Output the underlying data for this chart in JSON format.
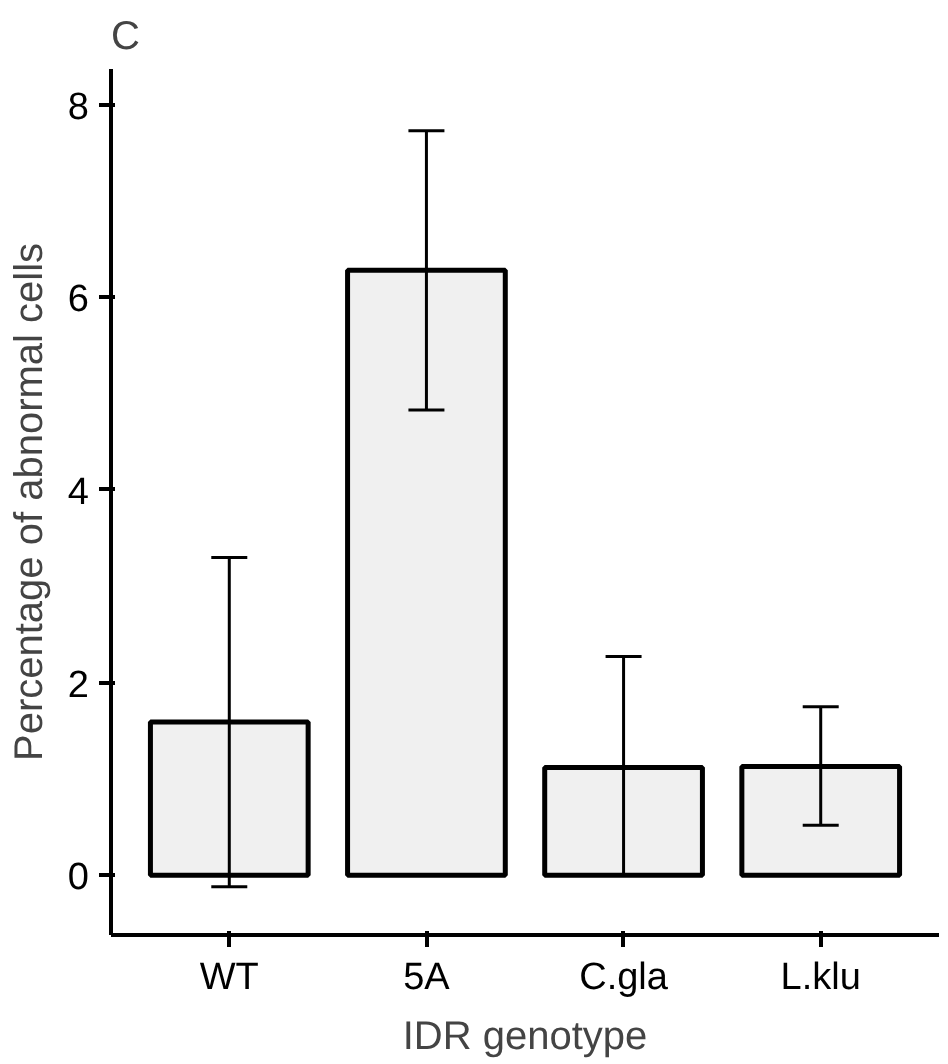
{
  "chart_data": {
    "type": "bar",
    "title": "C",
    "xlabel": "IDR genotype",
    "ylabel": "Percentage of abnormal cells",
    "categories": [
      "WT",
      "5A",
      "C.gla",
      "L.klu"
    ],
    "values": [
      1.59,
      6.28,
      1.12,
      1.13
    ],
    "errors": [
      [
        -0.12,
        3.3
      ],
      [
        4.83,
        7.73
      ],
      [
        0,
        2.27
      ],
      [
        0.52,
        1.75
      ]
    ],
    "color": "#f0f0f0",
    "ylim": [
      -0.62,
      8.37
    ],
    "yticks": [
      0,
      2,
      4,
      6,
      8
    ],
    "grid": false
  }
}
